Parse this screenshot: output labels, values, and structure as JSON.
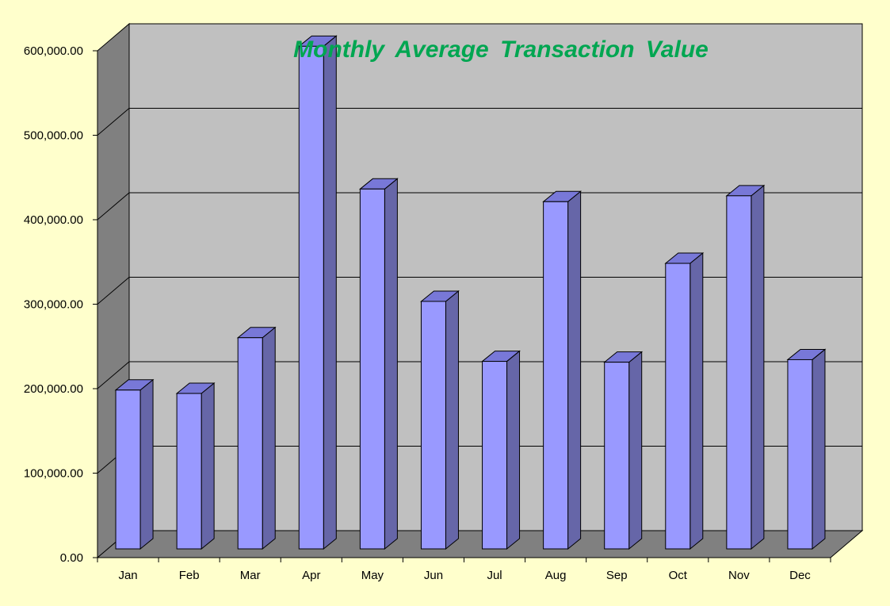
{
  "chart_data": {
    "type": "bar",
    "title": "Monthly  Average Transaction Value",
    "xlabel": "",
    "ylabel": "",
    "categories": [
      "Jan",
      "Feb",
      "Mar",
      "Apr",
      "May",
      "Jun",
      "Jul",
      "Aug",
      "Sep",
      "Oct",
      "Nov",
      "Dec"
    ],
    "values": [
      188000,
      184000,
      250000,
      595000,
      426000,
      293000,
      222000,
      411000,
      221000,
      338000,
      418000,
      224000
    ],
    "ylim": [
      0,
      600000
    ],
    "yticks": [
      "0.00",
      "100,000.00",
      "200,000.00",
      "300,000.00",
      "400,000.00",
      "500,000.00",
      "600,000.00"
    ],
    "grid": true,
    "style": "3d-column",
    "colors": {
      "background": "#FFFFCC",
      "wall": "#C0C0C0",
      "side_wall": "#808080",
      "floor": "#808080",
      "bar_front": "#9999FF",
      "bar_side": "#6666A8",
      "bar_top": "#7878D8",
      "title": "#00A651"
    }
  }
}
